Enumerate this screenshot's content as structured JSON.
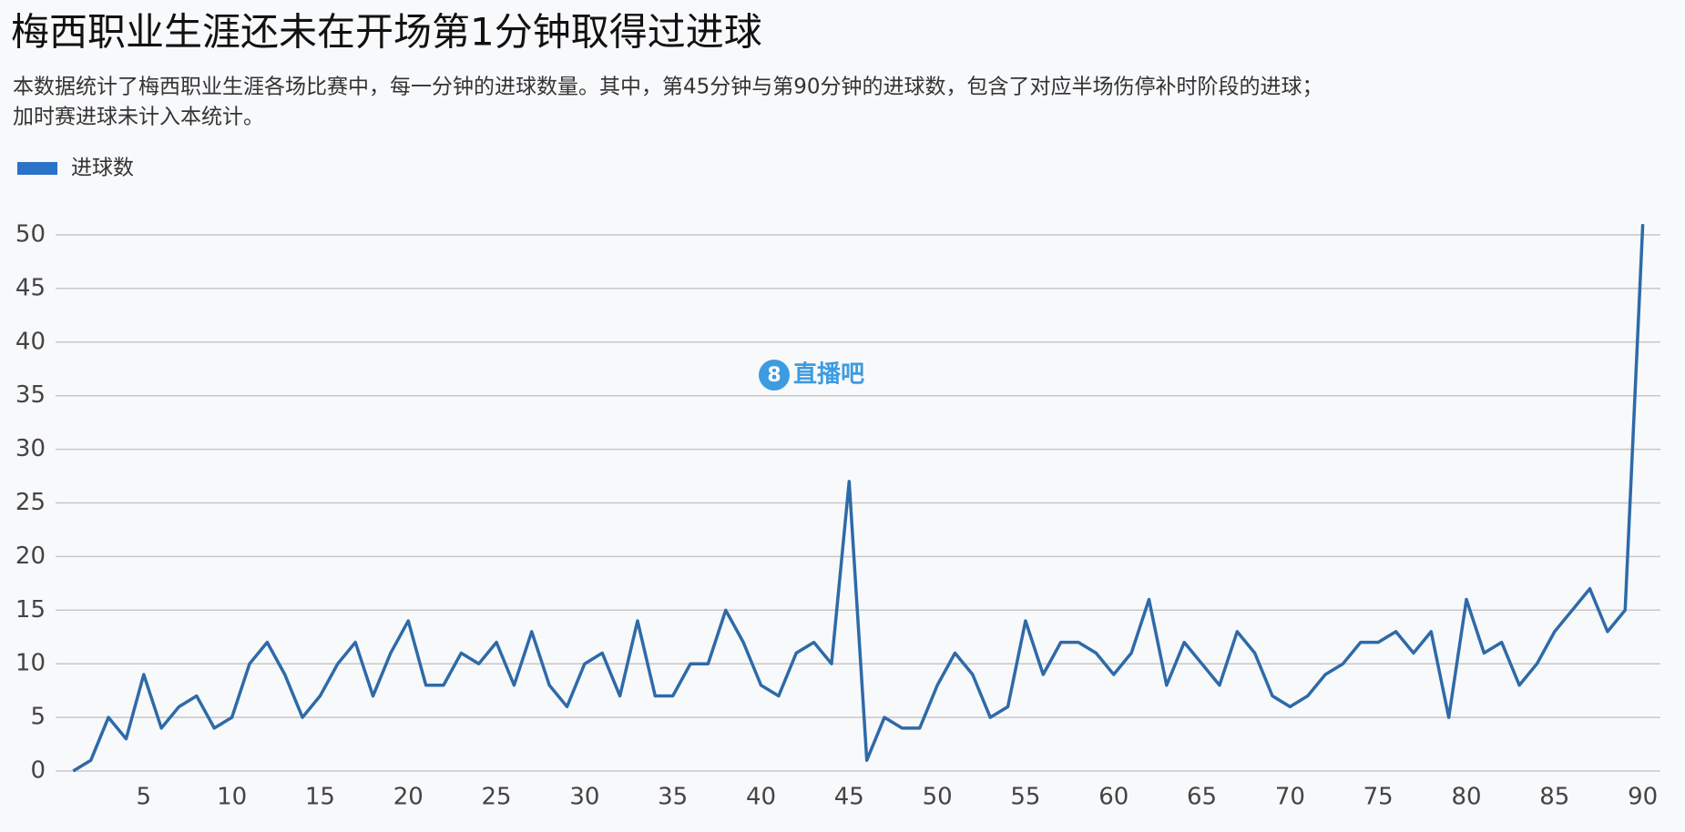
{
  "chart_data": {
    "type": "line",
    "title": "梅西职业生涯还未在开场第1分钟取得过进球",
    "subtitle": [
      "本数据统计了梅西职业生涯各场比赛中，每一分钟的进球数量。其中，第45分钟与第90分钟的进球数，包含了对应半场伤停补时阶段的进球；",
      "加时赛进球未计入本统计。"
    ],
    "watermark": "直播吧",
    "x": [
      1,
      2,
      3,
      4,
      5,
      6,
      7,
      8,
      9,
      10,
      11,
      12,
      13,
      14,
      15,
      16,
      17,
      18,
      19,
      20,
      21,
      22,
      23,
      24,
      25,
      26,
      27,
      28,
      29,
      30,
      31,
      32,
      33,
      34,
      35,
      36,
      37,
      38,
      39,
      40,
      41,
      42,
      43,
      44,
      45,
      46,
      47,
      48,
      49,
      50,
      51,
      52,
      53,
      54,
      55,
      56,
      57,
      58,
      59,
      60,
      61,
      62,
      63,
      64,
      65,
      66,
      67,
      68,
      69,
      70,
      71,
      72,
      73,
      74,
      75,
      76,
      77,
      78,
      79,
      80,
      81,
      82,
      83,
      84,
      85,
      86,
      87,
      88,
      89,
      90
    ],
    "series": [
      {
        "name": "进球数",
        "color": "#2e6aa8",
        "legend_color": "#2b72c9",
        "values": [
          0,
          1,
          5,
          3,
          9,
          4,
          6,
          7,
          4,
          5,
          10,
          12,
          9,
          5,
          7,
          10,
          12,
          7,
          11,
          14,
          8,
          8,
          11,
          10,
          12,
          8,
          13,
          8,
          6,
          10,
          11,
          7,
          14,
          7,
          7,
          10,
          10,
          15,
          12,
          8,
          7,
          11,
          12,
          10,
          27,
          1,
          5,
          4,
          4,
          8,
          11,
          9,
          5,
          6,
          14,
          9,
          12,
          12,
          11,
          9,
          11,
          16,
          8,
          12,
          10,
          8,
          13,
          11,
          7,
          6,
          7,
          9,
          10,
          12,
          12,
          13,
          11,
          13,
          5,
          16,
          11,
          12,
          8,
          10,
          13,
          15,
          17,
          13,
          15,
          51
        ]
      }
    ],
    "xlim": [
      0,
      91
    ],
    "xticks": [
      5,
      10,
      15,
      20,
      25,
      30,
      35,
      40,
      45,
      50,
      55,
      60,
      65,
      70,
      75,
      80,
      85,
      90
    ],
    "ylim": [
      0,
      50
    ],
    "yticks": [
      0,
      5,
      10,
      15,
      20,
      25,
      30,
      35,
      40,
      45,
      50
    ],
    "grid": true,
    "legend": "top-left"
  }
}
